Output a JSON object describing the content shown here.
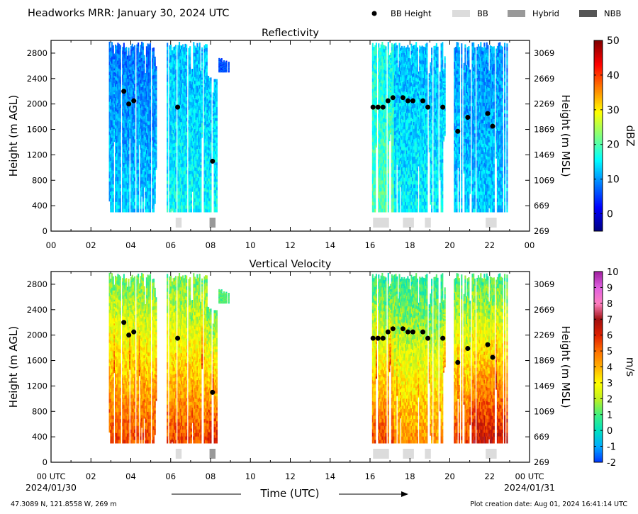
{
  "header": {
    "title": "Headworks MRR:  January 30, 2024 UTC",
    "legend": [
      {
        "label": "BB Height",
        "kind": "dot",
        "color": "#000000"
      },
      {
        "label": "BB",
        "kind": "box",
        "color": "#dcdcdc"
      },
      {
        "label": "Hybrid",
        "kind": "box",
        "color": "#999999"
      },
      {
        "label": "NBB",
        "kind": "box",
        "color": "#555555"
      }
    ]
  },
  "footer": {
    "location": "47.3089 N, 121.8558 W, 269 m",
    "creation": "Plot creation date: Aug 01, 2024 16:41:14 UTC",
    "xlabel": "Time (UTC)",
    "start_date": "2024/01/30",
    "end_date": "2024/01/31"
  },
  "chart_data": [
    {
      "type": "heatmap",
      "title": "Reflectivity",
      "ylabel": "Height (m AGL)",
      "ylabel_right": "Height (m MSL)",
      "xlim": [
        0,
        24
      ],
      "ylim": [
        0,
        3000
      ],
      "x_ticks": [
        "00",
        "02",
        "04",
        "06",
        "08",
        "10",
        "12",
        "14",
        "16",
        "18",
        "20",
        "22",
        "00"
      ],
      "y_ticks": [
        0,
        400,
        800,
        1200,
        1600,
        2000,
        2400,
        2800
      ],
      "y_ticks_right": [
        269,
        669,
        1069,
        1469,
        1869,
        2269,
        2669,
        3069
      ],
      "colorbar": {
        "label": "dBZ",
        "min": -5,
        "max": 50,
        "ticks": [
          0,
          10,
          20,
          30,
          40,
          50
        ],
        "colors": [
          "#00007f",
          "#0000ff",
          "#007fff",
          "#00ffff",
          "#7fff7f",
          "#ffff00",
          "#ff7f00",
          "#ff0000",
          "#7f0000"
        ]
      },
      "bb_height": [
        {
          "x": 3.65,
          "y": 2200
        },
        {
          "x": 3.9,
          "y": 2000
        },
        {
          "x": 4.15,
          "y": 2050
        },
        {
          "x": 6.35,
          "y": 1950
        },
        {
          "x": 8.1,
          "y": 1100
        },
        {
          "x": 16.15,
          "y": 1950
        },
        {
          "x": 16.4,
          "y": 1950
        },
        {
          "x": 16.65,
          "y": 1950
        },
        {
          "x": 16.9,
          "y": 2050
        },
        {
          "x": 17.15,
          "y": 2100
        },
        {
          "x": 17.65,
          "y": 2100
        },
        {
          "x": 17.9,
          "y": 2050
        },
        {
          "x": 18.15,
          "y": 2050
        },
        {
          "x": 18.65,
          "y": 2050
        },
        {
          "x": 18.9,
          "y": 1950
        },
        {
          "x": 19.65,
          "y": 1950
        },
        {
          "x": 20.4,
          "y": 1570
        },
        {
          "x": 20.9,
          "y": 1790
        },
        {
          "x": 21.9,
          "y": 1850
        },
        {
          "x": 22.15,
          "y": 1650
        }
      ],
      "bb_type": [
        {
          "x0": 6.25,
          "x1": 6.55,
          "type": "BB"
        },
        {
          "x0": 7.95,
          "x1": 8.25,
          "type": "Hybrid"
        },
        {
          "x0": 16.15,
          "x1": 16.95,
          "type": "BB"
        },
        {
          "x0": 17.65,
          "x1": 18.2,
          "type": "BB"
        },
        {
          "x0": 18.75,
          "x1": 19.05,
          "type": "BB"
        },
        {
          "x0": 21.8,
          "x1": 22.35,
          "type": "BB"
        }
      ],
      "precip_columns": [
        {
          "x0": 2.9,
          "x1": 5.3,
          "top": 2980,
          "bottom": 300,
          "level": 8,
          "surface": 13
        },
        {
          "x0": 5.8,
          "x1": 7.8,
          "top": 2980,
          "bottom": 300,
          "level": 12,
          "surface": 16
        },
        {
          "x0": 7.8,
          "x1": 8.4,
          "top": 2450,
          "bottom": 300,
          "level": 12,
          "surface": 16
        },
        {
          "x0": 8.4,
          "x1": 8.9,
          "top": 2750,
          "bottom": 2500,
          "level": 6,
          "surface": 6
        },
        {
          "x0": 16.1,
          "x1": 17.2,
          "top": 2980,
          "bottom": 300,
          "level": 16,
          "surface": 20
        },
        {
          "x0": 17.2,
          "x1": 19.8,
          "top": 2980,
          "bottom": 300,
          "level": 12,
          "surface": 15
        },
        {
          "x0": 20.2,
          "x1": 21.0,
          "top": 2980,
          "bottom": 300,
          "level": 10,
          "surface": 13
        },
        {
          "x0": 21.1,
          "x1": 22.9,
          "top": 2980,
          "bottom": 300,
          "level": 10,
          "surface": 13
        }
      ]
    },
    {
      "type": "heatmap",
      "title": "Vertical Velocity",
      "ylabel": "Height (m AGL)",
      "ylabel_right": "Height (m MSL)",
      "xlim": [
        0,
        24
      ],
      "ylim": [
        0,
        3000
      ],
      "x_ticks": [
        "00 UTC",
        "02",
        "04",
        "06",
        "08",
        "10",
        "12",
        "14",
        "16",
        "18",
        "20",
        "22",
        "00 UTC"
      ],
      "y_ticks": [
        0,
        400,
        800,
        1200,
        1600,
        2000,
        2400,
        2800
      ],
      "y_ticks_right": [
        269,
        669,
        1069,
        1469,
        1869,
        2269,
        2669,
        3069
      ],
      "colorbar": {
        "label": "m/s",
        "min": -2,
        "max": 10,
        "ticks": [
          -2,
          -1,
          0,
          1,
          2,
          3,
          4,
          5,
          6,
          7,
          8,
          9,
          10
        ],
        "colors": [
          "#0033ff",
          "#00aaff",
          "#00e0c0",
          "#40f080",
          "#c0f020",
          "#ffff00",
          "#ffb000",
          "#ff7000",
          "#e02000",
          "#a01010",
          "#ff80c0",
          "#e060e0",
          "#a020a0"
        ]
      },
      "bb_height": [
        {
          "x": 3.65,
          "y": 2200
        },
        {
          "x": 3.9,
          "y": 2000
        },
        {
          "x": 4.15,
          "y": 2050
        },
        {
          "x": 6.35,
          "y": 1950
        },
        {
          "x": 8.1,
          "y": 1100
        },
        {
          "x": 16.15,
          "y": 1950
        },
        {
          "x": 16.4,
          "y": 1950
        },
        {
          "x": 16.65,
          "y": 1950
        },
        {
          "x": 16.9,
          "y": 2050
        },
        {
          "x": 17.15,
          "y": 2100
        },
        {
          "x": 17.65,
          "y": 2100
        },
        {
          "x": 17.9,
          "y": 2050
        },
        {
          "x": 18.15,
          "y": 2050
        },
        {
          "x": 18.65,
          "y": 2050
        },
        {
          "x": 18.9,
          "y": 1950
        },
        {
          "x": 19.65,
          "y": 1950
        },
        {
          "x": 20.4,
          "y": 1570
        },
        {
          "x": 20.9,
          "y": 1790
        },
        {
          "x": 21.9,
          "y": 1850
        },
        {
          "x": 22.15,
          "y": 1650
        }
      ],
      "bb_type": [
        {
          "x0": 6.25,
          "x1": 6.55,
          "type": "BB"
        },
        {
          "x0": 7.95,
          "x1": 8.25,
          "type": "Hybrid"
        },
        {
          "x0": 16.15,
          "x1": 16.95,
          "type": "BB"
        },
        {
          "x0": 17.65,
          "x1": 18.2,
          "type": "BB"
        },
        {
          "x0": 18.75,
          "x1": 19.05,
          "type": "BB"
        },
        {
          "x0": 21.8,
          "x1": 22.35,
          "type": "BB"
        }
      ],
      "precip_columns": [
        {
          "x0": 2.9,
          "x1": 5.3,
          "top": 2980,
          "bottom": 300,
          "level": 1.2,
          "surface": 5.5
        },
        {
          "x0": 5.8,
          "x1": 7.8,
          "top": 2980,
          "bottom": 300,
          "level": 1.2,
          "surface": 5.5
        },
        {
          "x0": 7.8,
          "x1": 8.4,
          "top": 2450,
          "bottom": 300,
          "level": 1.0,
          "surface": 6.0
        },
        {
          "x0": 8.4,
          "x1": 8.9,
          "top": 2750,
          "bottom": 2500,
          "level": 1.0,
          "surface": 1.0
        },
        {
          "x0": 16.1,
          "x1": 17.2,
          "top": 2980,
          "bottom": 300,
          "level": 0.5,
          "surface": 5.5
        },
        {
          "x0": 17.2,
          "x1": 19.8,
          "top": 2980,
          "bottom": 300,
          "level": 0.5,
          "surface": 4.5
        },
        {
          "x0": 20.2,
          "x1": 21.0,
          "top": 2980,
          "bottom": 300,
          "level": 0.8,
          "surface": 5.5
        },
        {
          "x0": 21.1,
          "x1": 22.9,
          "top": 2980,
          "bottom": 300,
          "level": 0.8,
          "surface": 6.5
        }
      ]
    }
  ]
}
